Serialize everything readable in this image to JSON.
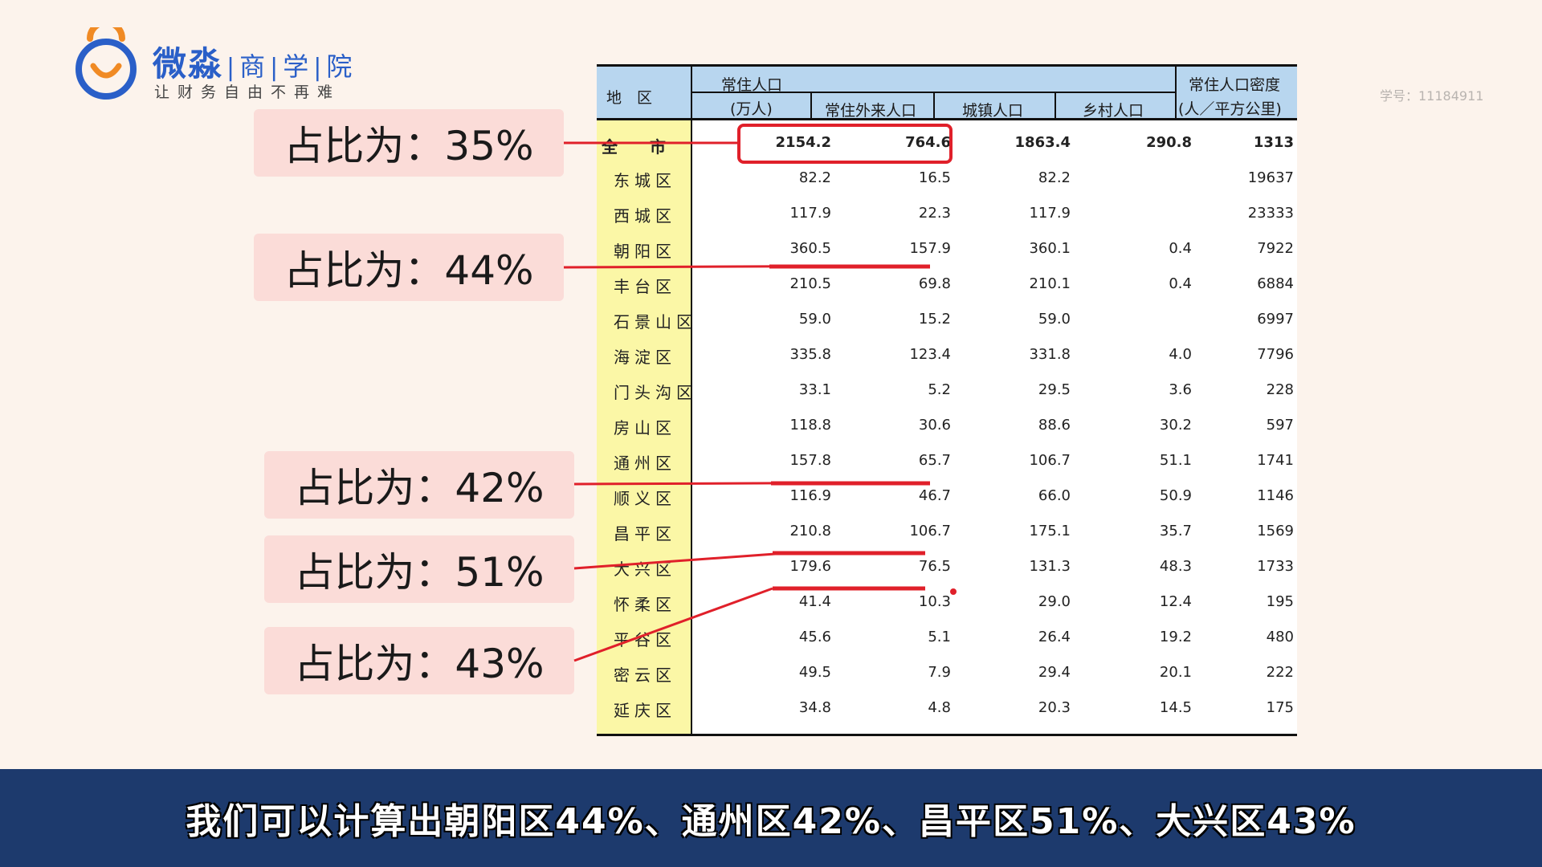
{
  "logo": {
    "name_main": "微淼",
    "name_parts": [
      "商",
      "学",
      "院"
    ],
    "slogan": "让财务自由不再难",
    "colors": {
      "blue": "#2a5fc8",
      "orange": "#f08a24"
    }
  },
  "student_id": "学号：11184911",
  "table": {
    "headers": {
      "region": "地　区",
      "resident": "常住人口",
      "resident_unit": "(万人)",
      "migrant": "常住外来人口",
      "urban": "城镇人口",
      "rural": "乡村人口",
      "density": "常住人口密度",
      "density_unit": "(人／平方公里)"
    },
    "rows": [
      {
        "region": "全市",
        "resident": "2154.2",
        "migrant": "764.6",
        "urban": "1863.4",
        "rural": "290.8",
        "density": "1313"
      },
      {
        "region": "东城区",
        "resident": "82.2",
        "migrant": "16.5",
        "urban": "82.2",
        "rural": "",
        "density": "19637"
      },
      {
        "region": "西城区",
        "resident": "117.9",
        "migrant": "22.3",
        "urban": "117.9",
        "rural": "",
        "density": "23333"
      },
      {
        "region": "朝阳区",
        "resident": "360.5",
        "migrant": "157.9",
        "urban": "360.1",
        "rural": "0.4",
        "density": "7922"
      },
      {
        "region": "丰台区",
        "resident": "210.5",
        "migrant": "69.8",
        "urban": "210.1",
        "rural": "0.4",
        "density": "6884"
      },
      {
        "region": "石景山区",
        "resident": "59.0",
        "migrant": "15.2",
        "urban": "59.0",
        "rural": "",
        "density": "6997"
      },
      {
        "region": "海淀区",
        "resident": "335.8",
        "migrant": "123.4",
        "urban": "331.8",
        "rural": "4.0",
        "density": "7796"
      },
      {
        "region": "门头沟区",
        "resident": "33.1",
        "migrant": "5.2",
        "urban": "29.5",
        "rural": "3.6",
        "density": "228"
      },
      {
        "region": "房山区",
        "resident": "118.8",
        "migrant": "30.6",
        "urban": "88.6",
        "rural": "30.2",
        "density": "597"
      },
      {
        "region": "通州区",
        "resident": "157.8",
        "migrant": "65.7",
        "urban": "106.7",
        "rural": "51.1",
        "density": "1741"
      },
      {
        "region": "顺义区",
        "resident": "116.9",
        "migrant": "46.7",
        "urban": "66.0",
        "rural": "50.9",
        "density": "1146"
      },
      {
        "region": "昌平区",
        "resident": "210.8",
        "migrant": "106.7",
        "urban": "175.1",
        "rural": "35.7",
        "density": "1569"
      },
      {
        "region": "大兴区",
        "resident": "179.6",
        "migrant": "76.5",
        "urban": "131.3",
        "rural": "48.3",
        "density": "1733"
      },
      {
        "region": "怀柔区",
        "resident": "41.4",
        "migrant": "10.3",
        "urban": "29.0",
        "rural": "12.4",
        "density": "195"
      },
      {
        "region": "平谷区",
        "resident": "45.6",
        "migrant": "5.1",
        "urban": "26.4",
        "rural": "19.2",
        "density": "480"
      },
      {
        "region": "密云区",
        "resident": "49.5",
        "migrant": "7.9",
        "urban": "29.4",
        "rural": "20.1",
        "density": "222"
      },
      {
        "region": "延庆区",
        "resident": "34.8",
        "migrant": "4.8",
        "urban": "20.3",
        "rural": "14.5",
        "density": "175"
      }
    ]
  },
  "callouts": [
    {
      "text": "占比为：35%"
    },
    {
      "text": "占比为：44%"
    },
    {
      "text": "占比为：42%"
    },
    {
      "text": "占比为：51%"
    },
    {
      "text": "占比为：43%"
    }
  ],
  "annotation_color": "#e0202a",
  "subtitle": "我们可以计算出朝阳区44%、通州区42%、昌平区51%、大兴区43%"
}
